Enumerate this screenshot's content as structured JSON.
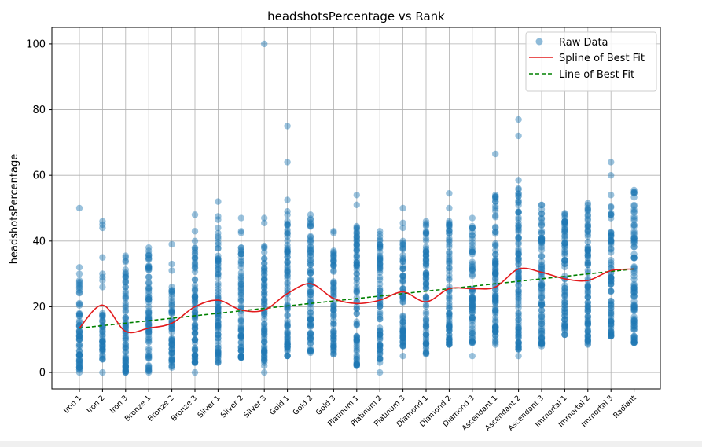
{
  "chart_data": {
    "type": "scatter",
    "title": "headshotsPercentage vs Rank",
    "xlabel": "",
    "ylabel": "headshotsPercentage",
    "ylim": [
      -5,
      105
    ],
    "yticks": [
      0,
      20,
      40,
      60,
      80,
      100
    ],
    "grid": true,
    "legend_position": "top-right",
    "categories": [
      "Iron 1",
      "Iron 2",
      "Iron 3",
      "Bronze 1",
      "Bronze 2",
      "Bronze 3",
      "Silver 1",
      "Silver 2",
      "Silver 3",
      "Gold 1",
      "Gold 2",
      "Gold 3",
      "Platinum 1",
      "Platinum 2",
      "Platinum 3",
      "Diamond 1",
      "Diamond 2",
      "Diamond 3",
      "Ascendant 1",
      "Ascendant 2",
      "Ascendant 3",
      "Immortal 1",
      "Immortal 2",
      "Immortal 3",
      "Radiant"
    ],
    "colors": {
      "raw": "#1f77b4",
      "spline": "#e31a1c",
      "line": "#008000",
      "grid": "#b0b0b0"
    },
    "series": [
      {
        "name": "Raw Data",
        "kind": "scatter",
        "points": [
          {
            "rank": 0,
            "range": [
              0,
              28
            ],
            "outliers": [
              50,
              32,
              30,
              25
            ]
          },
          {
            "rank": 1,
            "range": [
              4,
              18
            ],
            "outliers": [
              46,
              45,
              44,
              35,
              30,
              29,
              28,
              26,
              0
            ]
          },
          {
            "rank": 2,
            "range": [
              0,
              34
            ],
            "outliers": [
              35.5,
              35
            ]
          },
          {
            "rank": 3,
            "range": [
              0,
              36
            ],
            "outliers": [
              38,
              37
            ]
          },
          {
            "rank": 4,
            "range": [
              1.5,
              26
            ],
            "outliers": [
              39,
              33,
              31
            ]
          },
          {
            "rank": 5,
            "range": [
              3,
              38
            ],
            "outliers": [
              48,
              43,
              40,
              0
            ]
          },
          {
            "rank": 6,
            "range": [
              3,
              44
            ],
            "outliers": [
              52,
              47.5,
              46.5
            ]
          },
          {
            "rank": 7,
            "range": [
              4.5,
              38
            ],
            "outliers": [
              47,
              43,
              42.5
            ]
          },
          {
            "rank": 8,
            "range": [
              2,
              38.5
            ],
            "outliers": [
              100,
              47,
              45.5,
              0
            ]
          },
          {
            "rank": 9,
            "range": [
              5,
              46
            ],
            "outliers": [
              75,
              64,
              52.5,
              49,
              48
            ]
          },
          {
            "rank": 10,
            "range": [
              6,
              48
            ],
            "outliers": []
          },
          {
            "rank": 11,
            "range": [
              5.5,
              37
            ],
            "outliers": [
              43,
              42.5
            ]
          },
          {
            "rank": 12,
            "range": [
              2,
              44.5
            ],
            "outliers": [
              54,
              51
            ]
          },
          {
            "rank": 13,
            "range": [
              4,
              43
            ],
            "outliers": [
              3,
              0
            ]
          },
          {
            "rank": 14,
            "range": [
              8,
              40
            ],
            "outliers": [
              50,
              45.5,
              44,
              5
            ]
          },
          {
            "rank": 15,
            "range": [
              5.5,
              46
            ],
            "outliers": []
          },
          {
            "rank": 16,
            "range": [
              8.5,
              46
            ],
            "outliers": [
              54.5,
              50,
              45,
              43
            ]
          },
          {
            "rank": 17,
            "range": [
              9,
              44.5
            ],
            "outliers": [
              47,
              5
            ]
          },
          {
            "rank": 18,
            "range": [
              8.5,
              54
            ],
            "outliers": [
              66.5,
              52
            ]
          },
          {
            "rank": 19,
            "range": [
              7,
              56
            ],
            "outliers": [
              77,
              72,
              58.5,
              9,
              5
            ]
          },
          {
            "rank": 20,
            "range": [
              8,
              51
            ],
            "outliers": [
              12.5,
              12
            ]
          },
          {
            "rank": 21,
            "range": [
              11.5,
              48.5
            ],
            "outliers": [
              47
            ]
          },
          {
            "rank": 22,
            "range": [
              8.5,
              51.5
            ],
            "outliers": [
              50
            ]
          },
          {
            "rank": 23,
            "range": [
              11,
              50.5
            ],
            "outliers": [
              64,
              60,
              54
            ]
          },
          {
            "rank": 24,
            "range": [
              9,
              55.5
            ],
            "outliers": [
              54.5
            ]
          }
        ]
      },
      {
        "name": "Spline of Best Fit",
        "kind": "spline",
        "values": [
          13.5,
          20.5,
          12.5,
          13.5,
          15,
          20,
          22,
          19,
          19,
          24,
          27,
          22.5,
          21,
          22,
          24.5,
          21.5,
          25.5,
          25.5,
          26,
          31.5,
          30.5,
          28.5,
          28,
          31,
          31.5
        ]
      },
      {
        "name": "Line of Best Fit",
        "kind": "line",
        "start": 13.5,
        "end": 31.5
      }
    ]
  }
}
